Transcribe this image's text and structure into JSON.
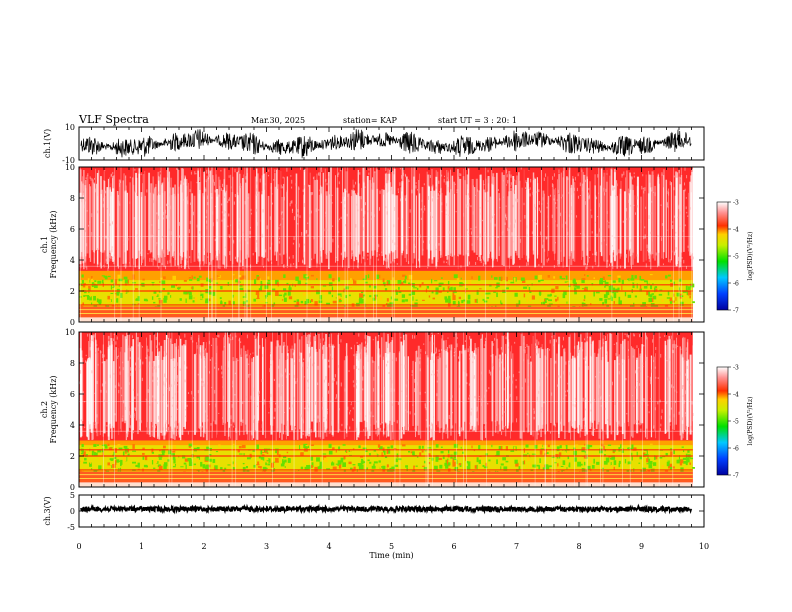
{
  "header": {
    "title": "VLF Spectra",
    "date": "Mar.30, 2025",
    "station": "station= KAP",
    "start": "start UT =  3 : 20: 1"
  },
  "chart_data": [
    {
      "type": "line",
      "name": "waveform-ch1",
      "ylabel": "ch.1(V)",
      "ylim": [
        -10,
        10
      ],
      "yticks": [
        "10",
        "-10"
      ],
      "x_extent_min": 9.8
    },
    {
      "type": "heatmap",
      "name": "spectrogram-ch1",
      "ylabel": "ch.1\nFrequency (kHz)",
      "ylim": [
        0,
        10
      ],
      "yticks": [
        "0",
        "2",
        "4",
        "6",
        "8",
        "10"
      ],
      "colorbar": {
        "label": "log(PSD)(V²/Hz)",
        "ticks": [
          "-3",
          "-4",
          "-5",
          "-6",
          "-7"
        ],
        "range": [
          -7,
          -3
        ]
      },
      "bands_khz": [
        [
          0.3,
          0.8
        ],
        [
          1.0,
          2.7
        ],
        [
          2.0,
          3.3
        ]
      ]
    },
    {
      "type": "heatmap",
      "name": "spectrogram-ch2",
      "ylabel": "ch.2\nFrequency (kHz)",
      "ylim": [
        0,
        10
      ],
      "yticks": [
        "0",
        "2",
        "4",
        "6",
        "8",
        "10"
      ],
      "colorbar": {
        "label": "log(PSD)(V²/Hz)",
        "ticks": [
          "-3",
          "-4",
          "-5",
          "-6",
          "-7"
        ],
        "range": [
          -7,
          -3
        ]
      },
      "bands_khz": [
        [
          0.5,
          1.0
        ],
        [
          1.0,
          2.8
        ],
        [
          2.0,
          3.0
        ]
      ]
    },
    {
      "type": "line",
      "name": "waveform-ch3",
      "ylabel": "ch.3(V)",
      "ylim": [
        -5,
        5
      ],
      "yticks": [
        "5",
        "0",
        "-5"
      ],
      "x_extent_min": 9.8
    }
  ],
  "xaxis": {
    "label": "Time (min)",
    "ticks": [
      "0",
      "1",
      "2",
      "3",
      "4",
      "5",
      "6",
      "7",
      "8",
      "9",
      "10"
    ],
    "xlim": [
      0,
      10
    ]
  }
}
